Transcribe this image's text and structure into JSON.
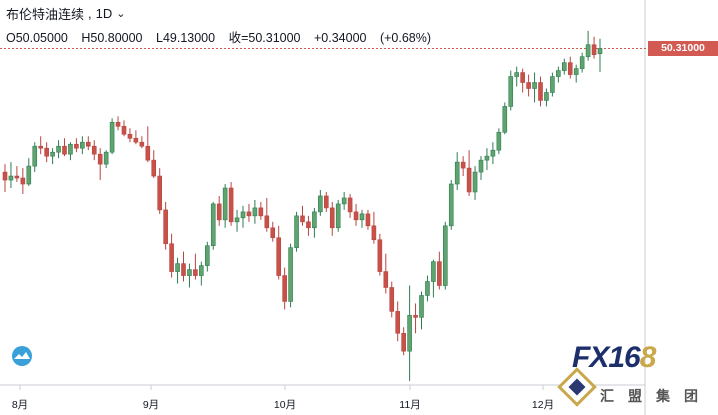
{
  "header": {
    "title": "布伦特油连续",
    "interval": "1D",
    "ohlc": {
      "open": "O50.05000",
      "high": "H50.80000",
      "low": "L49.13000",
      "close": "收=50.31000",
      "change": "+0.34000",
      "change_pct": "(+0.68%)"
    }
  },
  "price_tag": "50.31000",
  "x_axis": {
    "labels": [
      "8月",
      "9月",
      "10月",
      "11月",
      "12月"
    ]
  },
  "watermark": {
    "brand": "FX168",
    "brand_main": "FX16",
    "brand_accent": "8",
    "sub": "汇盟集团"
  },
  "colors": {
    "up": "#2e7d52",
    "up_fill": "#5fa36f",
    "down": "#b84540",
    "down_fill": "#c8514a",
    "last_price_line": "#d25a52"
  },
  "icons": {
    "logo": "cloud-wave-icon",
    "chevron": "chevron-down-icon"
  },
  "chart_data": {
    "type": "candlestick",
    "title": "布伦特油连续",
    "interval": "1D",
    "last_price": 50.31,
    "x_tick_labels": [
      "8月",
      "9月",
      "10月",
      "11月",
      "12月"
    ],
    "ohlc": [
      [
        44.1,
        44.5,
        43.1,
        43.7
      ],
      [
        43.7,
        44.6,
        43.3,
        43.9
      ],
      [
        43.9,
        44.4,
        43.6,
        43.8
      ],
      [
        43.8,
        44.3,
        43.0,
        43.5
      ],
      [
        43.5,
        44.8,
        43.4,
        44.4
      ],
      [
        44.4,
        45.6,
        44.1,
        45.4
      ],
      [
        45.4,
        45.9,
        45.0,
        45.3
      ],
      [
        45.3,
        45.6,
        44.6,
        44.9
      ],
      [
        44.9,
        45.3,
        44.5,
        45.1
      ],
      [
        45.1,
        45.7,
        44.8,
        45.4
      ],
      [
        45.4,
        45.8,
        44.9,
        45.0
      ],
      [
        45.0,
        45.6,
        44.7,
        45.5
      ],
      [
        45.5,
        45.8,
        45.1,
        45.3
      ],
      [
        45.3,
        45.9,
        45.0,
        45.6
      ],
      [
        45.6,
        45.9,
        45.2,
        45.4
      ],
      [
        45.4,
        45.7,
        44.7,
        45.0
      ],
      [
        45.0,
        45.3,
        43.7,
        44.5
      ],
      [
        44.5,
        45.2,
        44.3,
        45.1
      ],
      [
        45.1,
        46.8,
        45.0,
        46.6
      ],
      [
        46.6,
        46.9,
        46.2,
        46.4
      ],
      [
        46.4,
        46.7,
        45.9,
        46.0
      ],
      [
        46.0,
        46.3,
        45.6,
        45.8
      ],
      [
        45.8,
        46.2,
        45.5,
        45.6
      ],
      [
        45.6,
        45.9,
        45.3,
        45.4
      ],
      [
        45.4,
        46.4,
        44.6,
        44.7
      ],
      [
        44.7,
        45.2,
        43.8,
        43.9
      ],
      [
        43.9,
        44.3,
        42.0,
        42.2
      ],
      [
        42.2,
        42.6,
        40.2,
        40.5
      ],
      [
        40.5,
        41.0,
        38.8,
        39.1
      ],
      [
        39.1,
        39.8,
        38.5,
        39.5
      ],
      [
        39.5,
        40.1,
        38.6,
        38.9
      ],
      [
        38.9,
        39.5,
        38.3,
        39.2
      ],
      [
        39.2,
        40.0,
        38.7,
        38.9
      ],
      [
        38.9,
        39.6,
        38.4,
        39.4
      ],
      [
        39.4,
        40.6,
        39.1,
        40.4
      ],
      [
        40.4,
        42.6,
        40.2,
        42.5
      ],
      [
        42.5,
        42.9,
        41.4,
        41.7
      ],
      [
        41.7,
        43.5,
        41.3,
        43.3
      ],
      [
        43.3,
        43.6,
        41.4,
        41.6
      ],
      [
        41.6,
        42.2,
        41.1,
        41.8
      ],
      [
        41.8,
        42.4,
        41.3,
        42.1
      ],
      [
        42.1,
        42.5,
        41.6,
        41.9
      ],
      [
        41.9,
        42.7,
        41.5,
        42.3
      ],
      [
        42.3,
        42.6,
        41.7,
        41.9
      ],
      [
        41.9,
        42.8,
        41.1,
        41.3
      ],
      [
        41.3,
        41.6,
        40.6,
        40.8
      ],
      [
        40.8,
        41.4,
        38.7,
        38.9
      ],
      [
        38.9,
        39.3,
        37.2,
        37.6
      ],
      [
        37.6,
        40.5,
        37.3,
        40.3
      ],
      [
        40.3,
        42.1,
        40.1,
        41.9
      ],
      [
        41.9,
        42.4,
        41.4,
        41.6
      ],
      [
        41.6,
        41.9,
        40.9,
        41.3
      ],
      [
        41.3,
        42.3,
        40.8,
        42.1
      ],
      [
        42.1,
        43.2,
        41.9,
        42.9
      ],
      [
        42.9,
        43.1,
        42.1,
        42.3
      ],
      [
        42.3,
        42.6,
        40.9,
        41.3
      ],
      [
        41.3,
        42.7,
        41.1,
        42.5
      ],
      [
        42.5,
        43.1,
        42.2,
        42.8
      ],
      [
        42.8,
        43.0,
        41.8,
        42.1
      ],
      [
        42.1,
        42.5,
        41.4,
        41.7
      ],
      [
        41.7,
        42.2,
        41.3,
        42.0
      ],
      [
        42.0,
        42.2,
        41.2,
        41.4
      ],
      [
        41.4,
        42.1,
        40.5,
        40.7
      ],
      [
        40.7,
        41.0,
        38.9,
        39.1
      ],
      [
        39.1,
        40.0,
        38.0,
        38.3
      ],
      [
        38.3,
        38.6,
        36.8,
        37.1
      ],
      [
        37.1,
        37.6,
        35.6,
        36.0
      ],
      [
        36.0,
        36.3,
        34.9,
        35.1
      ],
      [
        35.1,
        38.4,
        33.6,
        36.9
      ],
      [
        36.9,
        37.5,
        36.0,
        36.8
      ],
      [
        36.8,
        38.1,
        36.2,
        37.9
      ],
      [
        37.9,
        38.9,
        37.6,
        38.6
      ],
      [
        38.6,
        39.7,
        37.8,
        39.6
      ],
      [
        39.6,
        40.1,
        38.2,
        38.4
      ],
      [
        38.4,
        41.6,
        38.2,
        41.4
      ],
      [
        41.4,
        43.7,
        41.2,
        43.5
      ],
      [
        43.5,
        45.1,
        43.2,
        44.6
      ],
      [
        44.6,
        44.9,
        43.9,
        44.3
      ],
      [
        44.3,
        45.2,
        42.9,
        43.1
      ],
      [
        43.1,
        44.4,
        42.7,
        44.1
      ],
      [
        44.1,
        44.9,
        43.7,
        44.7
      ],
      [
        44.7,
        45.3,
        44.2,
        44.9
      ],
      [
        44.9,
        45.6,
        44.5,
        45.2
      ],
      [
        45.2,
        46.3,
        45.0,
        46.1
      ],
      [
        46.1,
        47.6,
        46.0,
        47.4
      ],
      [
        47.4,
        49.2,
        47.2,
        48.9
      ],
      [
        48.9,
        49.4,
        48.4,
        49.1
      ],
      [
        49.1,
        49.3,
        48.1,
        48.6
      ],
      [
        48.6,
        49.0,
        47.9,
        48.3
      ],
      [
        48.3,
        49.1,
        47.6,
        48.6
      ],
      [
        48.6,
        48.9,
        47.4,
        47.7
      ],
      [
        47.7,
        48.3,
        47.4,
        48.1
      ],
      [
        48.1,
        49.1,
        47.9,
        48.9
      ],
      [
        48.9,
        49.4,
        48.6,
        49.2
      ],
      [
        49.2,
        49.8,
        49.0,
        49.6
      ],
      [
        49.6,
        49.9,
        48.8,
        49.0
      ],
      [
        49.0,
        49.5,
        48.6,
        49.3
      ],
      [
        49.3,
        50.1,
        49.1,
        49.9
      ],
      [
        49.9,
        51.2,
        49.7,
        50.5
      ],
      [
        50.5,
        50.9,
        49.8,
        50.0
      ],
      [
        50.05,
        50.8,
        49.13,
        50.31
      ]
    ]
  }
}
